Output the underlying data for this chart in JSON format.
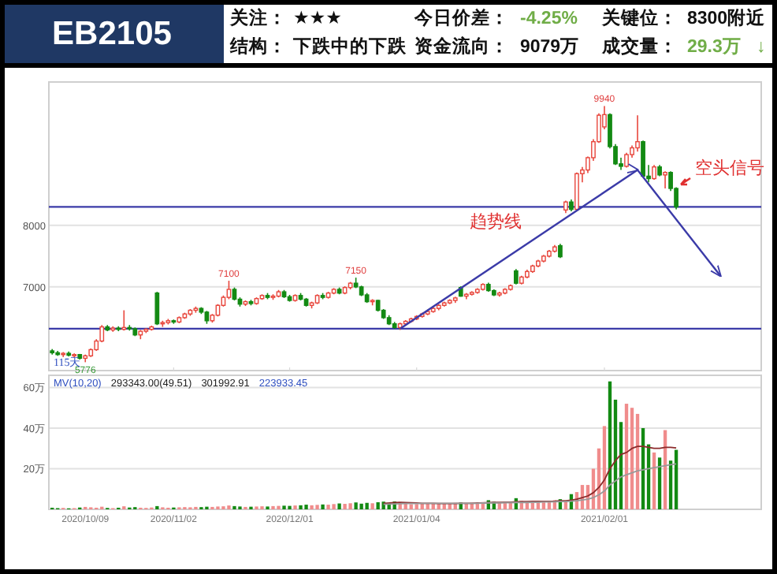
{
  "chart_data": [
    {
      "type": "other",
      "title": "EB2105",
      "annotations": [
        "关注：",
        "★★★",
        "今日价差：",
        "-4.25%",
        "关键位：",
        "8300附近",
        "结构：",
        "下跌中的下跌",
        "资金流向：",
        "9079万",
        "成交量：",
        "29.3万",
        "↓"
      ]
    },
    {
      "type": "candlestick",
      "tick_labels": "y",
      "grid": "y",
      "ylim": [
        5640,
        10330
      ],
      "yticks": [
        7000,
        8000
      ],
      "categories": [
        null,
        null,
        null,
        null,
        null,
        null,
        "2020/10/09",
        null,
        null,
        null,
        null,
        null,
        null,
        null,
        null,
        null,
        null,
        null,
        null,
        null,
        null,
        null,
        "2020/11/02",
        null,
        null,
        null,
        null,
        null,
        null,
        null,
        null,
        null,
        null,
        null,
        null,
        null,
        null,
        null,
        null,
        null,
        null,
        null,
        null,
        "2020/12/01",
        null,
        null,
        null,
        null,
        null,
        null,
        null,
        null,
        null,
        null,
        null,
        null,
        null,
        null,
        null,
        null,
        null,
        null,
        null,
        null,
        null,
        null,
        "2021/01/04",
        null,
        null,
        null,
        null,
        null,
        null,
        null,
        null,
        null,
        null,
        null,
        null,
        null,
        null,
        null,
        null,
        null,
        null,
        null,
        null,
        null,
        null,
        null,
        null,
        null,
        null,
        null,
        null,
        null,
        null,
        null,
        null,
        null,
        "2021/02/01",
        null,
        null,
        null,
        null,
        null,
        null,
        null,
        null,
        null,
        null,
        null,
        null,
        null,
        null,
        null,
        null,
        null,
        null,
        null,
        null,
        null,
        null,
        null,
        null,
        null,
        null,
        null,
        null
      ],
      "ohlc": [
        [
          5960,
          5990,
          5900,
          5930
        ],
        [
          5930,
          5960,
          5880,
          5900
        ],
        [
          5900,
          5940,
          5860,
          5920
        ],
        [
          5920,
          5950,
          5870,
          5890
        ],
        [
          5890,
          5920,
          5850,
          5900
        ],
        [
          5900,
          5910,
          5820,
          5840
        ],
        [
          5840,
          5900,
          5776,
          5880
        ],
        [
          5880,
          6000,
          5860,
          5980
        ],
        [
          5980,
          6150,
          5960,
          6120
        ],
        [
          6120,
          6380,
          6100,
          6350
        ],
        [
          6350,
          6380,
          6280,
          6300
        ],
        [
          6300,
          6360,
          6270,
          6330
        ],
        [
          6330,
          6360,
          6280,
          6310
        ],
        [
          6310,
          6620,
          6290,
          6340
        ],
        [
          6340,
          6380,
          6290,
          6320
        ],
        [
          6320,
          6340,
          6200,
          6220
        ],
        [
          6220,
          6300,
          6150,
          6280
        ],
        [
          6280,
          6330,
          6250,
          6310
        ],
        [
          6310,
          6370,
          6290,
          6350
        ],
        [
          6900,
          6920,
          6380,
          6400
        ],
        [
          6400,
          6450,
          6350,
          6420
        ],
        [
          6420,
          6480,
          6390,
          6450
        ],
        [
          6450,
          6470,
          6400,
          6430
        ],
        [
          6430,
          6520,
          6410,
          6500
        ],
        [
          6500,
          6580,
          6480,
          6560
        ],
        [
          6560,
          6640,
          6530,
          6620
        ],
        [
          6620,
          6680,
          6580,
          6650
        ],
        [
          6650,
          6670,
          6560,
          6590
        ],
        [
          6590,
          6610,
          6400,
          6450
        ],
        [
          6450,
          6560,
          6420,
          6540
        ],
        [
          6540,
          6720,
          6520,
          6700
        ],
        [
          6700,
          6860,
          6680,
          6830
        ],
        [
          6830,
          7100,
          6800,
          6960
        ],
        [
          6960,
          6990,
          6780,
          6800
        ],
        [
          6800,
          6830,
          6680,
          6720
        ],
        [
          6720,
          6780,
          6690,
          6760
        ],
        [
          6760,
          6790,
          6700,
          6730
        ],
        [
          6730,
          6830,
          6710,
          6810
        ],
        [
          6810,
          6880,
          6790,
          6860
        ],
        [
          6860,
          6900,
          6800,
          6830
        ],
        [
          6830,
          6880,
          6790,
          6850
        ],
        [
          6850,
          6950,
          6830,
          6920
        ],
        [
          6920,
          6950,
          6820,
          6840
        ],
        [
          6840,
          6870,
          6760,
          6780
        ],
        [
          6780,
          6880,
          6760,
          6860
        ],
        [
          6860,
          6900,
          6780,
          6800
        ],
        [
          6800,
          6820,
          6680,
          6700
        ],
        [
          6700,
          6760,
          6650,
          6740
        ],
        [
          6740,
          6880,
          6720,
          6860
        ],
        [
          6860,
          6900,
          6800,
          6830
        ],
        [
          6830,
          6920,
          6810,
          6900
        ],
        [
          6900,
          6980,
          6880,
          6960
        ],
        [
          6960,
          6990,
          6880,
          6900
        ],
        [
          6900,
          7010,
          6880,
          6990
        ],
        [
          6990,
          7080,
          6960,
          7060
        ],
        [
          7060,
          7150,
          6980,
          7000
        ],
        [
          7000,
          7020,
          6850,
          6870
        ],
        [
          6870,
          6900,
          6740,
          6760
        ],
        [
          6760,
          6800,
          6700,
          6780
        ],
        [
          6780,
          6790,
          6600,
          6620
        ],
        [
          6620,
          6640,
          6480,
          6500
        ],
        [
          6500,
          6540,
          6380,
          6400
        ],
        [
          6400,
          6430,
          6320,
          6340
        ],
        [
          6340,
          6420,
          6300,
          6400
        ],
        [
          6400,
          6460,
          6380,
          6440
        ],
        [
          6440,
          6500,
          6420,
          6480
        ],
        [
          6480,
          6540,
          6460,
          6520
        ],
        [
          6520,
          6580,
          6500,
          6560
        ],
        [
          6560,
          6630,
          6540,
          6600
        ],
        [
          6600,
          6680,
          6580,
          6650
        ],
        [
          6650,
          6720,
          6620,
          6700
        ],
        [
          6700,
          6760,
          6680,
          6740
        ],
        [
          6740,
          6800,
          6720,
          6780
        ],
        [
          6780,
          6840,
          6740,
          6820
        ],
        [
          6990,
          7010,
          6840,
          6850
        ],
        [
          6850,
          6900,
          6800,
          6880
        ],
        [
          6880,
          6930,
          6860,
          6910
        ],
        [
          6910,
          6980,
          6890,
          6960
        ],
        [
          6960,
          7060,
          6940,
          7040
        ],
        [
          7040,
          7070,
          6920,
          6940
        ],
        [
          6940,
          6960,
          6850,
          6870
        ],
        [
          6870,
          6920,
          6840,
          6900
        ],
        [
          6900,
          6980,
          6880,
          6960
        ],
        [
          6960,
          7040,
          6940,
          7020
        ],
        [
          7260,
          7290,
          7040,
          7060
        ],
        [
          7060,
          7180,
          7040,
          7160
        ],
        [
          7160,
          7280,
          7140,
          7250
        ],
        [
          7250,
          7360,
          7230,
          7340
        ],
        [
          7340,
          7440,
          7320,
          7420
        ],
        [
          7420,
          7520,
          7400,
          7500
        ],
        [
          7500,
          7600,
          7480,
          7580
        ],
        [
          7580,
          7680,
          7560,
          7650
        ],
        [
          7670,
          7700,
          7470,
          7490
        ],
        [
          8250,
          8400,
          8200,
          8380
        ],
        [
          8380,
          8420,
          8230,
          8260
        ],
        [
          8260,
          8860,
          8240,
          8840
        ],
        [
          8840,
          8950,
          8700,
          8900
        ],
        [
          8900,
          9120,
          8850,
          9100
        ],
        [
          9100,
          9400,
          9050,
          9360
        ],
        [
          9360,
          9820,
          9340,
          9790
        ],
        [
          9600,
          9940,
          9560,
          9800
        ],
        [
          9800,
          9820,
          9250,
          9280
        ],
        [
          9280,
          9320,
          8980,
          9000
        ],
        [
          9000,
          9100,
          8900,
          8960
        ],
        [
          8960,
          9180,
          8940,
          9150
        ],
        [
          9150,
          9300,
          9100,
          9260
        ],
        [
          9260,
          9790,
          9200,
          9360
        ],
        [
          9360,
          9380,
          8780,
          8800
        ],
        [
          8800,
          8980,
          8700,
          8760
        ],
        [
          8760,
          8980,
          8740,
          8950
        ],
        [
          8950,
          8980,
          8800,
          8820
        ],
        [
          8820,
          8880,
          8600,
          8860
        ],
        [
          8860,
          8880,
          8560,
          8600
        ],
        [
          8600,
          8620,
          8260,
          8300
        ],
        null,
        null,
        null,
        null,
        null,
        null,
        null,
        null,
        null,
        null,
        null,
        null,
        null,
        null,
        null
      ],
      "ref_lines": [
        {
          "axis": "y",
          "value": 6320,
          "color": "#3b3ba8"
        },
        {
          "axis": "y",
          "value": 8300,
          "color": "#3b3ba8"
        }
      ],
      "series": [
        {
          "type": "line",
          "name": "趋势线",
          "color": "#3b3ba8",
          "values": [
            null,
            null,
            null,
            null,
            null,
            null,
            null,
            null,
            null,
            null,
            null,
            null,
            null,
            null,
            null,
            null,
            null,
            null,
            null,
            null,
            null,
            null,
            null,
            null,
            null,
            null,
            null,
            null,
            null,
            null,
            null,
            null,
            null,
            null,
            null,
            null,
            null,
            null,
            null,
            null,
            null,
            null,
            null,
            null,
            null,
            null,
            null,
            null,
            null,
            null,
            null,
            null,
            null,
            null,
            null,
            null,
            null,
            null,
            null,
            null,
            null,
            null,
            null,
            6320,
            null,
            null,
            null,
            null,
            null,
            null,
            null,
            null,
            null,
            null,
            null,
            null,
            null,
            null,
            null,
            null,
            null,
            null,
            null,
            null,
            null,
            null,
            null,
            null,
            null,
            null,
            null,
            null,
            null,
            null,
            null,
            null,
            null,
            null,
            null,
            null,
            null,
            null,
            null,
            null,
            null,
            null,
            8900,
            null,
            null,
            null,
            null,
            null,
            null,
            null,
            null,
            null,
            null,
            null,
            null,
            null,
            null,
            7180,
            null,
            null,
            null,
            null,
            null,
            null,
            null
          ]
        }
      ],
      "annotations": [
        {
          "text": "9940",
          "y": 9940
        },
        {
          "text": "7100",
          "y": 7100
        },
        {
          "text": "7150",
          "y": 7150
        },
        {
          "text": "5776",
          "y": 5776
        },
        "115天",
        "空头信号"
      ]
    },
    {
      "type": "bar",
      "stacked": true,
      "grid": "y",
      "ylim": [
        0,
        66
      ],
      "yticks": [
        {
          "value": 20,
          "label": "20万"
        },
        {
          "value": 40,
          "label": "40万"
        },
        {
          "value": 60,
          "label": "60万"
        }
      ],
      "categories": [
        null,
        null,
        null,
        null,
        null,
        null,
        "2020/10/09",
        null,
        null,
        null,
        null,
        null,
        null,
        null,
        null,
        null,
        null,
        null,
        null,
        null,
        null,
        null,
        "2020/11/02",
        null,
        null,
        null,
        null,
        null,
        null,
        null,
        null,
        null,
        null,
        null,
        null,
        null,
        null,
        null,
        null,
        null,
        null,
        null,
        null,
        "2020/12/01",
        null,
        null,
        null,
        null,
        null,
        null,
        null,
        null,
        null,
        null,
        null,
        null,
        null,
        null,
        null,
        null,
        null,
        null,
        null,
        null,
        null,
        null,
        "2021/01/04",
        null,
        null,
        null,
        null,
        null,
        null,
        null,
        null,
        null,
        null,
        null,
        null,
        null,
        null,
        null,
        null,
        null,
        null,
        null,
        null,
        null,
        null,
        null,
        null,
        null,
        null,
        null,
        null,
        null,
        null,
        null,
        null,
        null,
        "2021/02/01",
        null,
        null,
        null,
        null,
        null,
        null,
        null,
        null,
        null,
        null,
        null,
        null,
        null,
        null,
        null,
        null,
        null,
        null,
        null,
        null,
        null,
        null,
        null,
        null,
        null,
        null,
        null,
        null
      ],
      "series": [
        {
          "color": "#f08c8c",
          "values": [
            null,
            null,
            0.7,
            null,
            0.6,
            null,
            1.2,
            1.0,
            0.8,
            1.3,
            null,
            0.6,
            null,
            1.5,
            null,
            null,
            0.8,
            0.7,
            0.9,
            null,
            1.0,
            0.8,
            null,
            1.0,
            1.1,
            1.0,
            1.2,
            null,
            null,
            1.2,
            1.4,
            1.5,
            1.9,
            null,
            null,
            1.2,
            null,
            1.4,
            1.5,
            null,
            1.6,
            1.7,
            null,
            null,
            1.9,
            null,
            null,
            2.0,
            2.2,
            null,
            2.3,
            2.6,
            null,
            2.7,
            3.0,
            null,
            null,
            null,
            3.0,
            null,
            null,
            null,
            null,
            3.6,
            2.8,
            2.5,
            2.6,
            2.7,
            2.9,
            3.0,
            2.8,
            3.1,
            3.0,
            3.2,
            null,
            2.9,
            3.3,
            3.0,
            3.6,
            null,
            null,
            3.4,
            3.7,
            3.5,
            null,
            4.2,
            3.8,
            4.0,
            3.5,
            3.9,
            4.2,
            4.5,
            null,
            4.3,
            null,
            8.5,
            12,
            12,
            20,
            30,
            41,
            null,
            null,
            null,
            52,
            50,
            47,
            null,
            null,
            28,
            null,
            39,
            null,
            null,
            null,
            null,
            null,
            null,
            null,
            null,
            null,
            null,
            null,
            null,
            null,
            null,
            null,
            null,
            null
          ]
        },
        {
          "color": "#138a13",
          "values": [
            0.8,
            0.6,
            null,
            0.5,
            null,
            0.9,
            null,
            null,
            null,
            null,
            0.7,
            null,
            0.8,
            null,
            0.9,
            1.1,
            null,
            null,
            null,
            1.6,
            null,
            null,
            0.9,
            null,
            null,
            null,
            null,
            1.1,
            1.3,
            null,
            null,
            null,
            null,
            1.6,
            1.4,
            null,
            1.3,
            null,
            null,
            1.4,
            null,
            null,
            1.8,
            1.7,
            null,
            2.0,
            2.3,
            null,
            null,
            2.4,
            null,
            null,
            2.9,
            null,
            null,
            3.4,
            2.8,
            3.2,
            null,
            3.5,
            3.8,
            3.3,
            3.9,
            null,
            null,
            null,
            null,
            null,
            null,
            null,
            null,
            null,
            null,
            null,
            3.4,
            null,
            null,
            null,
            null,
            4.5,
            3.8,
            null,
            null,
            null,
            5.5,
            null,
            null,
            null,
            null,
            null,
            null,
            null,
            5.0,
            null,
            7.5,
            null,
            null,
            null,
            null,
            null,
            null,
            63,
            54,
            43,
            null,
            null,
            null,
            40,
            32,
            null,
            25.5,
            null,
            24,
            29.3,
            null,
            null,
            null,
            null,
            null,
            null,
            null,
            null,
            null,
            null,
            null,
            null,
            null,
            null,
            null
          ]
        },
        {
          "type": "line",
          "color": "#8b2a2a",
          "values": [
            null,
            null,
            null,
            null,
            null,
            null,
            null,
            null,
            null,
            null,
            null,
            null,
            null,
            null,
            null,
            null,
            null,
            null,
            null,
            null,
            null,
            null,
            null,
            null,
            null,
            null,
            null,
            null,
            null,
            null,
            null,
            null,
            null,
            null,
            null,
            null,
            null,
            null,
            null,
            null,
            null,
            null,
            null,
            null,
            null,
            null,
            null,
            null,
            null,
            null,
            null,
            null,
            null,
            null,
            null,
            null,
            null,
            null,
            null,
            null,
            3.0,
            3.1,
            3.3,
            3.4,
            3.3,
            3.2,
            3.1,
            3.0,
            3.0,
            3.0,
            2.9,
            2.9,
            2.9,
            2.9,
            3.0,
            3.0,
            3.0,
            3.1,
            3.1,
            3.3,
            3.4,
            3.4,
            3.5,
            3.5,
            3.7,
            3.8,
            3.8,
            3.9,
            3.9,
            3.9,
            3.9,
            4.0,
            4.2,
            4.2,
            4.5,
            5.0,
            5.8,
            6.6,
            8.2,
            10.8,
            14.5,
            20,
            24,
            27,
            28,
            30,
            31,
            31,
            30.5,
            30,
            30,
            30.5,
            30.5,
            30.2,
            null,
            null,
            null,
            null,
            null,
            null,
            null,
            null,
            null,
            null,
            null,
            null,
            null,
            null,
            null
          ]
        },
        {
          "type": "line",
          "color": "#9a9a9a",
          "values": [
            null,
            null,
            null,
            null,
            null,
            null,
            null,
            null,
            null,
            null,
            null,
            null,
            null,
            null,
            null,
            null,
            null,
            null,
            null,
            null,
            null,
            null,
            null,
            null,
            null,
            null,
            null,
            null,
            null,
            null,
            null,
            null,
            null,
            null,
            null,
            null,
            null,
            null,
            null,
            null,
            null,
            null,
            null,
            null,
            null,
            null,
            null,
            null,
            null,
            null,
            null,
            null,
            null,
            null,
            null,
            null,
            null,
            null,
            null,
            null,
            2.5,
            2.6,
            2.7,
            2.8,
            2.9,
            2.9,
            2.9,
            3.0,
            3.0,
            3.0,
            3.0,
            3.0,
            3.0,
            3.0,
            3.0,
            3.0,
            3.0,
            3.0,
            3.1,
            3.2,
            3.2,
            3.2,
            3.3,
            3.3,
            3.4,
            3.4,
            3.4,
            3.5,
            3.5,
            3.6,
            3.6,
            3.7,
            3.8,
            3.8,
            4.0,
            4.2,
            4.6,
            5.0,
            5.8,
            7.2,
            9.0,
            12,
            14,
            16,
            17,
            18,
            19,
            19.5,
            20,
            20.5,
            21,
            21.5,
            22,
            22.4,
            null,
            null,
            null,
            null,
            null,
            null,
            null,
            null,
            null,
            null,
            null,
            null,
            null,
            null,
            null
          ]
        }
      ],
      "annotations": [
        "MV(10,20)",
        "293343.00(49.51)",
        "301992.91",
        "223933.45"
      ]
    }
  ]
}
